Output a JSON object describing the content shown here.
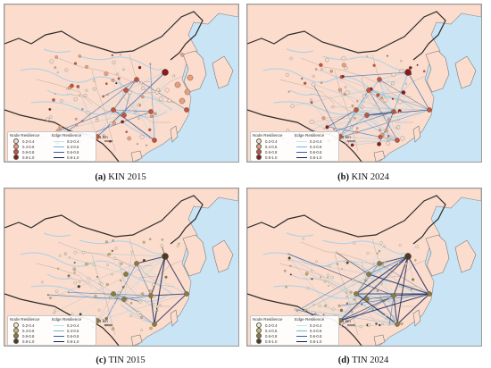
{
  "panels": [
    {
      "key": "a",
      "caption_letter": "(a)",
      "caption_text": "KIN 2015",
      "network": "kin2015"
    },
    {
      "key": "b",
      "caption_letter": "(b)",
      "caption_text": "KIN 2024",
      "network": "kin2024"
    },
    {
      "key": "c",
      "caption_letter": "(c)",
      "caption_text": "TIN 2015",
      "network": "tin2015"
    },
    {
      "key": "d",
      "caption_letter": "(d)",
      "caption_text": "TIN 2024",
      "network": "tin2024"
    }
  ],
  "legend": {
    "node_title": "Node Resilience",
    "edge_title": "Edge Resilience",
    "classes": [
      "0.2-0.4",
      "0.4-0.6",
      "0.6-0.8",
      "0.8-1.0"
    ],
    "kin_node_colors": [
      "#f6dccb",
      "#e6a07a",
      "#c9523a",
      "#8b1a1a"
    ],
    "tin_node_colors": [
      "#f2edc8",
      "#cdb870",
      "#8e7a3e",
      "#4c3b20"
    ],
    "edge_colors": [
      "#bfe3f0",
      "#6fb6d8",
      "#2f5fa8",
      "#141e50"
    ]
  },
  "scale_label": "1 km",
  "colors": {
    "land": "#fbdccd",
    "sea": "#c9e4f5",
    "river": "#a8d0ea",
    "border": "#2b2b2b",
    "province": "#b9b0ab"
  }
}
